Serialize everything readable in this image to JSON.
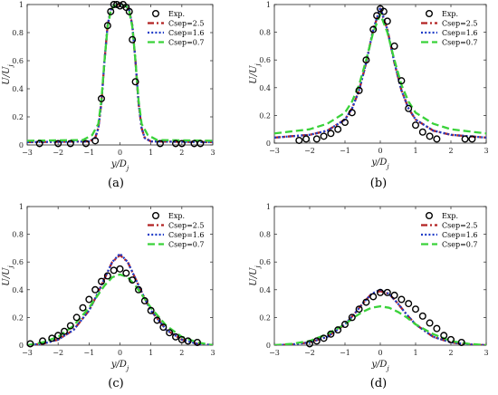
{
  "chart_data": [
    {
      "type": "line",
      "panel_label": "(a)",
      "xlabel": "y/D_j",
      "ylabel": "U/U_j",
      "xlim": [
        -3,
        3
      ],
      "ylim": [
        0,
        1
      ],
      "xticks": [
        "-3",
        "-2",
        "-1",
        "0",
        "1",
        "2",
        "3"
      ],
      "yticks": [
        "0",
        "0.2",
        "0.4",
        "0.6",
        "0.8",
        "1"
      ],
      "legend_placement": "top-right",
      "series": [
        {
          "name": "Exp.",
          "style": "markers",
          "color": "#000000",
          "x": [
            -2.6,
            -2.0,
            -1.6,
            -1.1,
            -0.8,
            -0.6,
            -0.4,
            -0.3,
            -0.2,
            -0.1,
            0.0,
            0.1,
            0.2,
            0.3,
            0.4,
            0.5,
            1.3,
            1.8,
            2.0,
            2.4,
            2.6
          ],
          "y": [
            0.01,
            0.01,
            0.01,
            0.01,
            0.03,
            0.33,
            0.85,
            0.95,
            1.0,
            1.0,
            0.99,
            1.0,
            0.98,
            0.95,
            0.75,
            0.45,
            0.01,
            0.01,
            0.01,
            0.01,
            0.01
          ]
        },
        {
          "name": "Csep=2.5",
          "style": "dash-dot",
          "color": "#b22222",
          "x": [
            -3,
            -1.0,
            -0.8,
            -0.7,
            -0.6,
            -0.5,
            -0.4,
            -0.3,
            -0.2,
            -0.1,
            0.0,
            0.1,
            0.2,
            0.3,
            0.4,
            0.5,
            0.6,
            0.7,
            0.8,
            1.0,
            3
          ],
          "y": [
            0.02,
            0.025,
            0.05,
            0.12,
            0.3,
            0.6,
            0.85,
            0.96,
            0.99,
            1.0,
            1.0,
            1.0,
            0.99,
            0.96,
            0.85,
            0.6,
            0.3,
            0.12,
            0.05,
            0.025,
            0.02
          ]
        },
        {
          "name": "Csep=1.6",
          "style": "dotted",
          "color": "#1f3cc7",
          "x": [
            -3,
            -1.0,
            -0.8,
            -0.7,
            -0.6,
            -0.5,
            -0.4,
            -0.3,
            -0.2,
            -0.1,
            0.0,
            0.1,
            0.2,
            0.3,
            0.4,
            0.5,
            0.6,
            0.7,
            0.8,
            1.0,
            3
          ],
          "y": [
            0.02,
            0.025,
            0.05,
            0.12,
            0.3,
            0.6,
            0.85,
            0.96,
            0.99,
            1.0,
            1.0,
            1.0,
            0.99,
            0.96,
            0.85,
            0.6,
            0.3,
            0.12,
            0.05,
            0.025,
            0.02
          ]
        },
        {
          "name": "Csep=0.7",
          "style": "dashed",
          "color": "#3ad23a",
          "x": [
            -3,
            -1.2,
            -0.9,
            -0.7,
            -0.6,
            -0.5,
            -0.4,
            -0.3,
            -0.2,
            -0.1,
            0.0,
            0.1,
            0.2,
            0.3,
            0.4,
            0.5,
            0.6,
            0.7,
            0.9,
            1.2,
            3
          ],
          "y": [
            0.03,
            0.035,
            0.07,
            0.15,
            0.32,
            0.6,
            0.84,
            0.95,
            0.99,
            1.0,
            1.0,
            1.0,
            0.99,
            0.95,
            0.84,
            0.6,
            0.32,
            0.15,
            0.07,
            0.035,
            0.03
          ]
        }
      ]
    },
    {
      "type": "line",
      "panel_label": "(b)",
      "xlabel": "y/D_j",
      "ylabel": "U/U_j",
      "xlim": [
        -3,
        3
      ],
      "ylim": [
        0,
        1
      ],
      "xticks": [
        "-3",
        "-2",
        "-1",
        "0",
        "1",
        "2",
        "3"
      ],
      "yticks": [
        "0",
        "0.2",
        "0.4",
        "0.6",
        "0.8",
        "1"
      ],
      "legend_placement": "top-right",
      "series": [
        {
          "name": "Exp.",
          "style": "markers",
          "color": "#000000",
          "x": [
            -2.3,
            -2.1,
            -1.8,
            -1.6,
            -1.4,
            -1.2,
            -1.0,
            -0.8,
            -0.6,
            -0.4,
            -0.2,
            -0.1,
            0.0,
            0.1,
            0.2,
            0.4,
            0.6,
            0.8,
            1.0,
            1.2,
            1.4,
            1.6,
            2.4,
            2.6
          ],
          "y": [
            0.02,
            0.03,
            0.03,
            0.05,
            0.07,
            0.1,
            0.15,
            0.22,
            0.38,
            0.6,
            0.82,
            0.92,
            0.97,
            0.95,
            0.88,
            0.7,
            0.45,
            0.25,
            0.13,
            0.08,
            0.05,
            0.03,
            0.03,
            0.03
          ]
        },
        {
          "name": "Csep=2.5",
          "style": "dash-dot",
          "color": "#b22222",
          "x": [
            -3,
            -2,
            -1.5,
            -1,
            -0.8,
            -0.6,
            -0.4,
            -0.2,
            0,
            0.2,
            0.4,
            0.6,
            0.8,
            1,
            1.5,
            2,
            3
          ],
          "y": [
            0.04,
            0.06,
            0.09,
            0.17,
            0.25,
            0.38,
            0.58,
            0.82,
            0.97,
            0.82,
            0.58,
            0.38,
            0.25,
            0.17,
            0.09,
            0.06,
            0.04
          ]
        },
        {
          "name": "Csep=1.6",
          "style": "dotted",
          "color": "#1f3cc7",
          "x": [
            -3,
            -2,
            -1.5,
            -1,
            -0.8,
            -0.6,
            -0.4,
            -0.2,
            0,
            0.2,
            0.4,
            0.6,
            0.8,
            1,
            1.5,
            2,
            3
          ],
          "y": [
            0.04,
            0.06,
            0.09,
            0.17,
            0.25,
            0.38,
            0.58,
            0.82,
            0.98,
            0.82,
            0.58,
            0.38,
            0.25,
            0.17,
            0.09,
            0.06,
            0.04
          ]
        },
        {
          "name": "Csep=0.7",
          "style": "dashed",
          "color": "#3ad23a",
          "x": [
            -3,
            -2,
            -1.5,
            -1,
            -0.8,
            -0.6,
            -0.4,
            -0.2,
            0,
            0.2,
            0.4,
            0.6,
            0.8,
            1,
            1.5,
            2,
            3
          ],
          "y": [
            0.07,
            0.1,
            0.14,
            0.22,
            0.3,
            0.42,
            0.6,
            0.8,
            0.93,
            0.8,
            0.6,
            0.42,
            0.3,
            0.22,
            0.14,
            0.1,
            0.07
          ]
        }
      ]
    },
    {
      "type": "line",
      "panel_label": "(c)",
      "xlabel": "y/D_j",
      "ylabel": "U/U_j",
      "xlim": [
        -3,
        3
      ],
      "ylim": [
        0,
        1
      ],
      "xticks": [
        "-3",
        "-2",
        "-1",
        "0",
        "1",
        "2",
        "3"
      ],
      "yticks": [
        "0",
        "0.2",
        "0.4",
        "0.6",
        "0.8",
        "1"
      ],
      "legend_placement": "top-right",
      "series": [
        {
          "name": "Exp.",
          "style": "markers",
          "color": "#000000",
          "x": [
            -2.9,
            -2.5,
            -2.2,
            -2.0,
            -1.8,
            -1.6,
            -1.4,
            -1.2,
            -1.0,
            -0.8,
            -0.6,
            -0.4,
            -0.2,
            0.0,
            0.2,
            0.4,
            0.6,
            0.8,
            1.0,
            1.2,
            1.4,
            1.6,
            1.8,
            2.0,
            2.2,
            2.5
          ],
          "y": [
            0.01,
            0.03,
            0.05,
            0.07,
            0.1,
            0.14,
            0.2,
            0.27,
            0.33,
            0.4,
            0.46,
            0.5,
            0.54,
            0.55,
            0.52,
            0.47,
            0.4,
            0.32,
            0.25,
            0.18,
            0.13,
            0.09,
            0.06,
            0.04,
            0.03,
            0.02
          ]
        },
        {
          "name": "Csep=2.5",
          "style": "dash-dot",
          "color": "#b22222",
          "x": [
            -3,
            -2.5,
            -2,
            -1.5,
            -1,
            -0.75,
            -0.5,
            -0.25,
            0,
            0.25,
            0.5,
            0.75,
            1,
            1.5,
            2,
            2.5,
            3
          ],
          "y": [
            0.0,
            0.01,
            0.04,
            0.11,
            0.25,
            0.36,
            0.48,
            0.6,
            0.65,
            0.6,
            0.48,
            0.36,
            0.25,
            0.11,
            0.04,
            0.01,
            0.0
          ]
        },
        {
          "name": "Csep=1.6",
          "style": "dotted",
          "color": "#1f3cc7",
          "x": [
            -3,
            -2.5,
            -2,
            -1.5,
            -1,
            -0.75,
            -0.5,
            -0.25,
            0,
            0.25,
            0.5,
            0.75,
            1,
            1.5,
            2,
            2.5,
            3
          ],
          "y": [
            0.0,
            0.01,
            0.04,
            0.11,
            0.25,
            0.36,
            0.48,
            0.6,
            0.66,
            0.6,
            0.48,
            0.36,
            0.25,
            0.11,
            0.04,
            0.01,
            0.0
          ]
        },
        {
          "name": "Csep=0.7",
          "style": "dashed",
          "color": "#3ad23a",
          "x": [
            -3,
            -2.5,
            -2,
            -1.5,
            -1,
            -0.75,
            -0.5,
            -0.25,
            0,
            0.25,
            0.5,
            0.75,
            1,
            1.5,
            2,
            2.5,
            3
          ],
          "y": [
            0.0,
            0.02,
            0.06,
            0.14,
            0.27,
            0.35,
            0.43,
            0.49,
            0.51,
            0.49,
            0.43,
            0.35,
            0.27,
            0.14,
            0.06,
            0.02,
            0.0
          ]
        }
      ]
    },
    {
      "type": "line",
      "panel_label": "(d)",
      "xlabel": "y/D_j",
      "ylabel": "U/U_j",
      "xlim": [
        -3,
        3
      ],
      "ylim": [
        0,
        1
      ],
      "xticks": [
        "-3",
        "-2",
        "-1",
        "0",
        "1",
        "2",
        "3"
      ],
      "yticks": [
        "0",
        "0.2",
        "0.4",
        "0.6",
        "0.8",
        "1"
      ],
      "legend_placement": "top-right",
      "series": [
        {
          "name": "Exp.",
          "style": "markers",
          "color": "#000000",
          "x": [
            -2.0,
            -1.8,
            -1.6,
            -1.4,
            -1.2,
            -1.0,
            -0.8,
            -0.6,
            -0.4,
            -0.2,
            0.0,
            0.2,
            0.4,
            0.6,
            0.8,
            1.0,
            1.2,
            1.4,
            1.6,
            1.8,
            2.0,
            2.3
          ],
          "y": [
            0.01,
            0.03,
            0.05,
            0.08,
            0.11,
            0.15,
            0.2,
            0.26,
            0.31,
            0.35,
            0.38,
            0.38,
            0.36,
            0.33,
            0.3,
            0.26,
            0.21,
            0.16,
            0.12,
            0.07,
            0.04,
            0.02
          ]
        },
        {
          "name": "Csep=2.5",
          "style": "dash-dot",
          "color": "#b22222",
          "x": [
            -3,
            -2.5,
            -2,
            -1.5,
            -1,
            -0.75,
            -0.5,
            -0.25,
            0,
            0.25,
            0.5,
            0.75,
            1,
            1.5,
            2,
            2.5,
            3
          ],
          "y": [
            0.0,
            0.005,
            0.02,
            0.06,
            0.15,
            0.22,
            0.3,
            0.37,
            0.39,
            0.37,
            0.3,
            0.22,
            0.15,
            0.06,
            0.02,
            0.005,
            0.0
          ]
        },
        {
          "name": "Csep=1.6",
          "style": "dotted",
          "color": "#1f3cc7",
          "x": [
            -3,
            -2.5,
            -2,
            -1.5,
            -1,
            -0.75,
            -0.5,
            -0.25,
            0,
            0.25,
            0.5,
            0.75,
            1,
            1.5,
            2,
            2.5,
            3
          ],
          "y": [
            0.0,
            0.005,
            0.02,
            0.06,
            0.15,
            0.22,
            0.3,
            0.37,
            0.4,
            0.37,
            0.3,
            0.22,
            0.15,
            0.06,
            0.02,
            0.005,
            0.0
          ]
        },
        {
          "name": "Csep=0.7",
          "style": "dashed",
          "color": "#3ad23a",
          "x": [
            -3,
            -2.5,
            -2,
            -1.5,
            -1,
            -0.75,
            -0.5,
            -0.25,
            0,
            0.25,
            0.5,
            0.75,
            1,
            1.5,
            2,
            2.5,
            3
          ],
          "y": [
            0.0,
            0.01,
            0.03,
            0.08,
            0.15,
            0.2,
            0.24,
            0.27,
            0.28,
            0.27,
            0.24,
            0.2,
            0.15,
            0.08,
            0.03,
            0.01,
            0.0
          ]
        }
      ]
    }
  ]
}
